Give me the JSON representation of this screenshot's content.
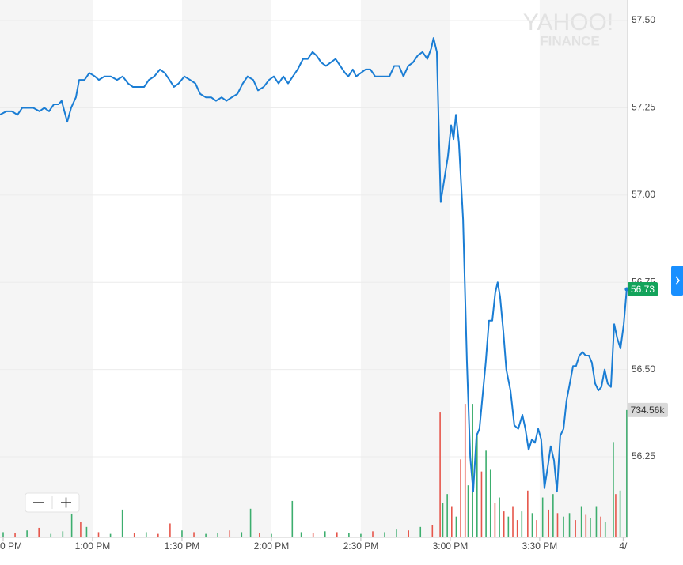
{
  "chart_data": {
    "type": "line",
    "watermark": [
      "YAHOO!",
      "FINANCE"
    ],
    "xlim": [
      -1.06,
      209.5
    ],
    "xticks": [
      {
        "value": 0,
        "label": "0 PM"
      },
      {
        "value": 30,
        "label": "1:00 PM"
      },
      {
        "value": 60,
        "label": "1:30 PM"
      },
      {
        "value": 90,
        "label": "2:00 PM"
      },
      {
        "value": 120,
        "label": "2:30 PM"
      },
      {
        "value": 150,
        "label": "3:00 PM"
      },
      {
        "value": 180,
        "label": "3:30 PM"
      },
      {
        "value": 208,
        "label": "4/"
      }
    ],
    "ylim": [
      56.019,
      57.559
    ],
    "yticks": [
      {
        "value": 56.25,
        "label": "56.25"
      },
      {
        "value": 56.5,
        "label": "56.50"
      },
      {
        "value": 56.75,
        "label": "56.75"
      },
      {
        "value": 57,
        "label": "57.00"
      },
      {
        "value": 57.25,
        "label": "57.25"
      },
      {
        "value": 57.5,
        "label": "57.50"
      }
    ],
    "y2lim": [
      0,
      3100000
    ],
    "grid": true,
    "series": [
      {
        "type": "line",
        "color": "#1a7dd4",
        "x": [
          -1.1,
          1.1,
          2.9,
          4.8,
          6.4,
          8.2,
          10.1,
          12.2,
          13.8,
          15.4,
          17.0,
          18.6,
          19.6,
          21.5,
          22.8,
          24.4,
          25.5,
          27.3,
          28.9,
          30.8,
          32.1,
          34.0,
          36.1,
          38.2,
          40.1,
          41.9,
          43.5,
          45.4,
          47.3,
          48.9,
          50.7,
          52.6,
          54.2,
          55.8,
          57.3,
          58.9,
          60.8,
          62.7,
          64.5,
          66.1,
          68.0,
          69.8,
          71.4,
          73.3,
          74.9,
          76.7,
          78.6,
          80.4,
          82.0,
          83.9,
          85.5,
          87.4,
          89.2,
          90.8,
          92.4,
          94.0,
          95.6,
          97.2,
          98.8,
          100.6,
          102.2,
          103.8,
          105.1,
          106.7,
          108.3,
          109.9,
          111.5,
          113.1,
          114.7,
          115.8,
          117.3,
          118.4,
          120.0,
          121.6,
          123.2,
          124.8,
          126.4,
          128.0,
          129.6,
          131.2,
          132.8,
          134.3,
          135.9,
          137.5,
          139.1,
          140.7,
          142.3,
          143.6,
          144.4,
          145.5,
          146.8,
          147.9,
          149.2,
          150.3,
          151.1,
          151.9,
          152.9,
          154.3,
          155.6,
          156.7,
          157.7,
          158.8,
          159.8,
          160.9,
          161.9,
          163.0,
          164.1,
          165.1,
          165.9,
          166.7,
          167.8,
          168.8,
          170.2,
          171.5,
          172.8,
          174.2,
          175.2,
          176.3,
          177.4,
          178.4,
          179.5,
          180.5,
          181.6,
          182.7,
          183.7,
          184.8,
          185.8,
          186.9,
          188.0,
          189.0,
          190.1,
          191.2,
          192.2,
          193.3,
          194.4,
          195.4,
          196.5,
          197.5,
          198.6,
          199.7,
          200.7,
          201.8,
          202.8,
          203.9,
          205.0,
          206.0,
          207.1,
          208.2,
          209.2
        ],
        "values": [
          57.23,
          57.24,
          57.24,
          57.23,
          57.25,
          57.25,
          57.25,
          57.24,
          57.25,
          57.24,
          57.26,
          57.26,
          57.27,
          57.21,
          57.25,
          57.28,
          57.33,
          57.33,
          57.35,
          57.34,
          57.33,
          57.34,
          57.34,
          57.33,
          57.34,
          57.32,
          57.31,
          57.31,
          57.31,
          57.33,
          57.34,
          57.36,
          57.35,
          57.33,
          57.31,
          57.32,
          57.34,
          57.33,
          57.32,
          57.29,
          57.28,
          57.28,
          57.27,
          57.28,
          57.27,
          57.28,
          57.29,
          57.32,
          57.34,
          57.33,
          57.3,
          57.31,
          57.33,
          57.34,
          57.32,
          57.34,
          57.32,
          57.34,
          57.36,
          57.39,
          57.39,
          57.41,
          57.4,
          57.38,
          57.37,
          57.38,
          57.39,
          57.37,
          57.35,
          57.34,
          57.36,
          57.34,
          57.35,
          57.36,
          57.36,
          57.34,
          57.34,
          57.34,
          57.34,
          57.37,
          57.37,
          57.34,
          57.37,
          57.38,
          57.4,
          57.41,
          57.39,
          57.42,
          57.45,
          57.41,
          56.98,
          57.04,
          57.11,
          57.2,
          57.16,
          57.23,
          57.15,
          56.93,
          56.52,
          56.25,
          56.15,
          56.31,
          56.33,
          56.43,
          56.52,
          56.64,
          56.64,
          56.72,
          56.75,
          56.71,
          56.61,
          56.5,
          56.44,
          56.34,
          56.33,
          56.37,
          56.33,
          56.27,
          56.3,
          56.29,
          56.33,
          56.3,
          56.16,
          56.22,
          56.28,
          56.24,
          56.15,
          56.31,
          56.33,
          56.41,
          56.46,
          56.51,
          56.51,
          56.54,
          56.55,
          56.54,
          56.54,
          56.52,
          56.46,
          56.44,
          56.45,
          56.5,
          56.46,
          56.45,
          56.63,
          56.59,
          56.56,
          56.63,
          56.73
        ],
        "label_color": "#13a35b"
      },
      {
        "type": "bar",
        "axis": "y2",
        "label_color": "#d9d9d9",
        "x": [
          0,
          4,
          8,
          12,
          16,
          20,
          23,
          26,
          28,
          32,
          36,
          40,
          44,
          48,
          52,
          56,
          60,
          64,
          68,
          72,
          76,
          80,
          83,
          86,
          90,
          97,
          100,
          104,
          108,
          112,
          116,
          120,
          124,
          128,
          132,
          136,
          140,
          144,
          146.6,
          147.5,
          149,
          150.5,
          152,
          153.5,
          155,
          156,
          157.5,
          159,
          160.5,
          162,
          163.5,
          165,
          166.5,
          168,
          169.5,
          171,
          172.5,
          174,
          176,
          177.5,
          179,
          181,
          183,
          184.5,
          186,
          188,
          190,
          192,
          194,
          195.5,
          197,
          199,
          200.5,
          202,
          204.7,
          205.5,
          207,
          209.2
        ],
        "values": [
          30000,
          25000,
          40000,
          55000,
          20000,
          35000,
          137000,
          90000,
          60000,
          30000,
          20000,
          160000,
          25000,
          30000,
          20000,
          80000,
          40000,
          30000,
          20000,
          25000,
          40000,
          30000,
          165000,
          25000,
          20000,
          210000,
          30000,
          25000,
          35000,
          30000,
          25000,
          20000,
          35000,
          30000,
          45000,
          40000,
          60000,
          70000,
          720000,
          200000,
          250000,
          180000,
          120000,
          450000,
          770000,
          300000,
          770000,
          600000,
          380000,
          500000,
          390000,
          200000,
          230000,
          150000,
          120000,
          180000,
          100000,
          150000,
          270000,
          140000,
          100000,
          230000,
          160000,
          250000,
          140000,
          120000,
          140000,
          100000,
          180000,
          130000,
          110000,
          180000,
          120000,
          90000,
          550000,
          250000,
          270000,
          734560
        ],
        "colors": [
          "#3dae6e",
          "#e6564b",
          "#3dae6e",
          "#e6564b",
          "#3dae6e",
          "#3dae6e",
          "#3dae6e",
          "#e6564b",
          "#3dae6e",
          "#e6564b",
          "#3dae6e",
          "#3dae6e",
          "#e6564b",
          "#3dae6e",
          "#e6564b",
          "#e6564b",
          "#3dae6e",
          "#e6564b",
          "#3dae6e",
          "#3dae6e",
          "#e6564b",
          "#3dae6e",
          "#3dae6e",
          "#e6564b",
          "#3dae6e",
          "#3dae6e",
          "#3dae6e",
          "#e6564b",
          "#3dae6e",
          "#e6564b",
          "#3dae6e",
          "#3dae6e",
          "#e6564b",
          "#3dae6e",
          "#3dae6e",
          "#e6564b",
          "#3dae6e",
          "#e6564b",
          "#e6564b",
          "#3dae6e",
          "#3dae6e",
          "#e6564b",
          "#3dae6e",
          "#e6564b",
          "#e6564b",
          "#3dae6e",
          "#3dae6e",
          "#3dae6e",
          "#e6564b",
          "#3dae6e",
          "#3dae6e",
          "#e6564b",
          "#3dae6e",
          "#e6564b",
          "#3dae6e",
          "#e6564b",
          "#e6564b",
          "#3dae6e",
          "#e6564b",
          "#3dae6e",
          "#e6564b",
          "#3dae6e",
          "#e6564b",
          "#3dae6e",
          "#e6564b",
          "#3dae6e",
          "#3dae6e",
          "#e6564b",
          "#3dae6e",
          "#e6564b",
          "#3dae6e",
          "#3dae6e",
          "#e6564b",
          "#3dae6e",
          "#3dae6e",
          "#e6564b",
          "#3dae6e",
          "#3dae6e"
        ],
        "value_labels": [
          null,
          null,
          null,
          null,
          null,
          null,
          null,
          null,
          null,
          null,
          null,
          null,
          null,
          null,
          null,
          null,
          null,
          null,
          null,
          null,
          null,
          null,
          null,
          null,
          null,
          null,
          null,
          null,
          null,
          null,
          null,
          null,
          null,
          null,
          null,
          null,
          null,
          null,
          null,
          null,
          null,
          null,
          null,
          null,
          null,
          null,
          null,
          null,
          null,
          null,
          null,
          null,
          null,
          null,
          null,
          null,
          null,
          null,
          null,
          null,
          null,
          null,
          null,
          null,
          null,
          null,
          null,
          null,
          null,
          null,
          null,
          null,
          null,
          null,
          null,
          null,
          null,
          "734.56k"
        ]
      }
    ]
  }
}
